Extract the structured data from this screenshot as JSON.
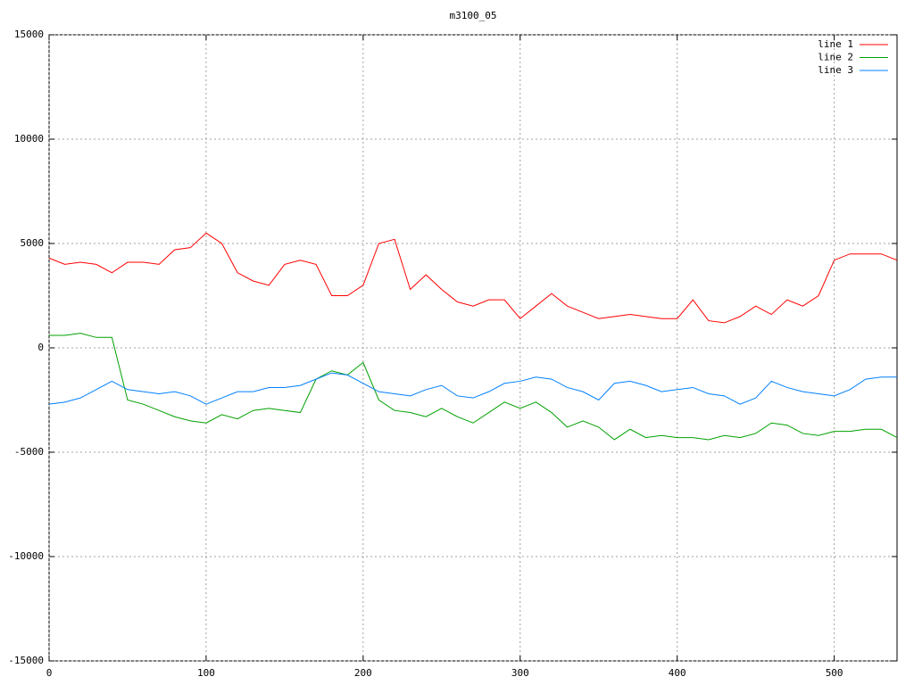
{
  "chart_data": {
    "type": "line",
    "title": "m3100_05",
    "x": [
      0,
      10,
      20,
      30,
      40,
      50,
      60,
      70,
      80,
      90,
      100,
      110,
      120,
      130,
      140,
      150,
      160,
      170,
      180,
      190,
      200,
      210,
      220,
      230,
      240,
      250,
      260,
      270,
      280,
      290,
      300,
      310,
      320,
      330,
      340,
      350,
      360,
      370,
      380,
      390,
      400,
      410,
      420,
      430,
      440,
      450,
      460,
      470,
      480,
      490,
      500,
      510,
      520,
      530,
      540
    ],
    "series": [
      {
        "name": "line 1",
        "color": "#ff0000",
        "values": [
          4300,
          4000,
          4100,
          4000,
          3600,
          4100,
          4100,
          4000,
          4700,
          4800,
          5500,
          5000,
          3600,
          3200,
          3000,
          4000,
          4200,
          4000,
          2500,
          2500,
          3000,
          5000,
          5200,
          2800,
          3500,
          2800,
          2200,
          2000,
          2300,
          2300,
          1400,
          2000,
          2600,
          2000,
          1700,
          1400,
          1500,
          1600,
          1500,
          1400,
          1400,
          2300,
          1300,
          1200,
          1500,
          2000,
          1600,
          2300,
          2000,
          2500,
          4200,
          4500,
          4500,
          4500,
          4200
        ]
      },
      {
        "name": "line 2",
        "color": "#00a000",
        "values": [
          600,
          600,
          700,
          500,
          500,
          -2500,
          -2700,
          -3000,
          -3300,
          -3500,
          -3600,
          -3200,
          -3400,
          -3000,
          -2900,
          -3000,
          -3100,
          -1500,
          -1100,
          -1300,
          -700,
          -2500,
          -3000,
          -3100,
          -3300,
          -2900,
          -3300,
          -3600,
          -3100,
          -2600,
          -2900,
          -2600,
          -3100,
          -3800,
          -3500,
          -3800,
          -4400,
          -3900,
          -4300,
          -4200,
          -4300,
          -4300,
          -4400,
          -4200,
          -4300,
          -4100,
          -3600,
          -3700,
          -4100,
          -4200,
          -4000,
          -4000,
          -3900,
          -3900,
          -4300
        ]
      },
      {
        "name": "line 3",
        "color": "#0080ff",
        "values": [
          -2700,
          -2600,
          -2400,
          -2000,
          -1600,
          -2000,
          -2100,
          -2200,
          -2100,
          -2300,
          -2700,
          -2400,
          -2100,
          -2100,
          -1900,
          -1900,
          -1800,
          -1500,
          -1200,
          -1300,
          -1700,
          -2100,
          -2200,
          -2300,
          -2000,
          -1800,
          -2300,
          -2400,
          -2100,
          -1700,
          -1600,
          -1400,
          -1500,
          -1900,
          -2100,
          -2500,
          -1700,
          -1600,
          -1800,
          -2100,
          -2000,
          -1900,
          -2200,
          -2300,
          -2700,
          -2400,
          -1600,
          -1900,
          -2100,
          -2200,
          -2300,
          -2000,
          -1500,
          -1400,
          -1400
        ]
      }
    ],
    "xlim": [
      0,
      540
    ],
    "xticks": [
      0,
      100,
      200,
      300,
      400,
      500
    ],
    "ylim": [
      -15000,
      15000
    ],
    "yticks": [
      -15000,
      -10000,
      -5000,
      0,
      5000,
      10000,
      15000
    ],
    "grid": true,
    "legend": "upper right"
  }
}
